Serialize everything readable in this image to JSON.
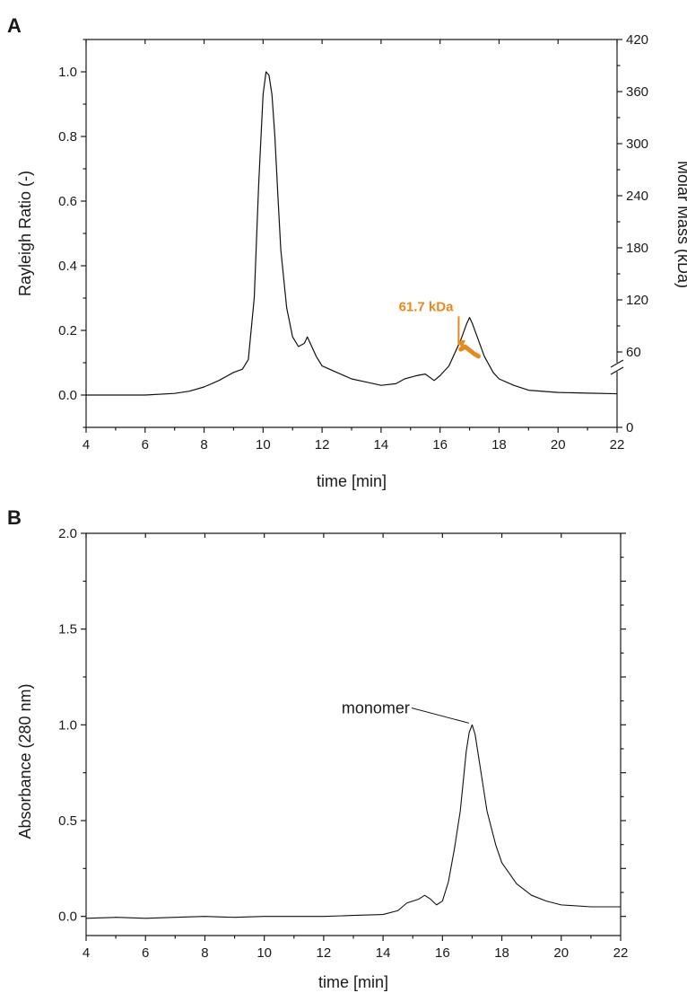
{
  "colors": {
    "mass": "#E8891C",
    "ink": "#111111"
  },
  "chart_data": [
    {
      "panel": "A",
      "type": "line",
      "xlabel": "time [min]",
      "ylabel": "Rayleigh Ratio (-)",
      "y2label": "Molar Mass (kDa)",
      "xlim": [
        4,
        22
      ],
      "ylim": [
        -0.1,
        1.1
      ],
      "y2lim": [
        0,
        420
      ],
      "y2_axis_break": true,
      "xticks": [
        4,
        6,
        8,
        10,
        12,
        14,
        16,
        18,
        20,
        22
      ],
      "yticks": [
        0.0,
        0.2,
        0.4,
        0.6,
        0.8,
        1.0
      ],
      "ytick_labels": [
        "0.0",
        "0.2",
        "0.4",
        "0.6",
        "0.8",
        "1.0"
      ],
      "y2ticks": [
        0,
        60,
        120,
        180,
        240,
        300,
        360,
        420
      ],
      "y2tick_labels": [
        "0",
        "60",
        "120",
        "180",
        "240",
        "300",
        "360",
        "420"
      ],
      "grid": false,
      "series": [
        {
          "x": [
            4.0,
            5.0,
            6.0,
            7.0,
            7.5,
            8.0,
            8.5,
            9.0,
            9.3,
            9.5,
            9.7,
            9.85,
            10.0,
            10.1,
            10.2,
            10.3,
            10.4,
            10.5,
            10.6,
            10.8,
            11.0,
            11.2,
            11.4,
            11.5,
            11.6,
            11.8,
            12.0,
            12.5,
            13.0,
            13.5,
            14.0,
            14.5,
            14.8,
            15.0,
            15.2,
            15.5,
            15.8,
            16.0,
            16.3,
            16.5,
            16.7,
            16.9,
            17.0,
            17.1,
            17.3,
            17.5,
            17.8,
            18.0,
            18.5,
            19.0,
            20.0,
            21.0,
            22.0
          ],
          "y": [
            0.0,
            0.0,
            0.0,
            0.005,
            0.012,
            0.025,
            0.045,
            0.07,
            0.08,
            0.11,
            0.3,
            0.65,
            0.93,
            1.0,
            0.99,
            0.93,
            0.8,
            0.62,
            0.45,
            0.27,
            0.18,
            0.15,
            0.16,
            0.18,
            0.16,
            0.12,
            0.09,
            0.07,
            0.05,
            0.04,
            0.03,
            0.035,
            0.05,
            0.055,
            0.06,
            0.065,
            0.045,
            0.06,
            0.09,
            0.13,
            0.17,
            0.22,
            0.24,
            0.22,
            0.17,
            0.12,
            0.07,
            0.05,
            0.03,
            0.015,
            0.008,
            0.006,
            0.004
          ]
        },
        {
          "axis": "y2",
          "x": [
            16.7,
            16.85,
            17.0,
            17.15,
            17.3
          ],
          "y": [
            63,
            66,
            62,
            58,
            55
          ]
        }
      ],
      "annotations": [
        {
          "text": "61.7 kDa",
          "x": 16.45,
          "y": 0.26
        }
      ]
    },
    {
      "panel": "B",
      "type": "line",
      "xlabel": "time [min]",
      "ylabel": "Absorbance (280 nm)",
      "xlim": [
        4,
        22
      ],
      "ylim": [
        -0.1,
        2.0
      ],
      "xticks": [
        4,
        6,
        8,
        10,
        12,
        14,
        16,
        18,
        20,
        22
      ],
      "yticks": [
        0.0,
        0.5,
        1.0,
        1.5,
        2.0
      ],
      "ytick_labels": [
        "0.0",
        "0.5",
        "1.0",
        "1.5",
        "2.0"
      ],
      "right_minor_ticks": true,
      "grid": false,
      "series": [
        {
          "x": [
            4.0,
            5.0,
            6.0,
            7.0,
            8.0,
            9.0,
            10.0,
            11.0,
            12.0,
            13.0,
            14.0,
            14.5,
            14.8,
            15.0,
            15.2,
            15.4,
            15.6,
            15.8,
            16.0,
            16.2,
            16.4,
            16.6,
            16.8,
            16.9,
            17.0,
            17.1,
            17.3,
            17.5,
            17.8,
            18.0,
            18.5,
            19.0,
            19.5,
            20.0,
            21.0,
            22.0
          ],
          "y": [
            -0.01,
            -0.005,
            -0.01,
            -0.005,
            0.0,
            -0.005,
            0.0,
            0.0,
            0.0,
            0.005,
            0.01,
            0.03,
            0.07,
            0.08,
            0.09,
            0.11,
            0.09,
            0.06,
            0.08,
            0.18,
            0.35,
            0.55,
            0.86,
            0.96,
            1.0,
            0.95,
            0.75,
            0.55,
            0.37,
            0.28,
            0.17,
            0.11,
            0.08,
            0.06,
            0.05,
            0.05
          ]
        }
      ],
      "annotations": [
        {
          "text": "monomer",
          "x": 14.9,
          "y": 1.06,
          "points_to": [
            16.95,
            1.0
          ]
        }
      ]
    }
  ]
}
